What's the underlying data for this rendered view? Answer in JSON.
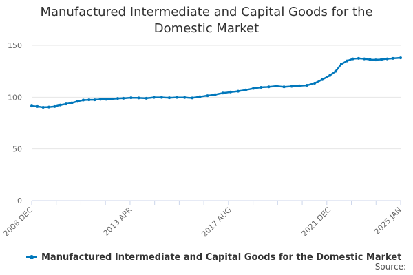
{
  "chart_data": {
    "type": "line",
    "title": "Manufactured Intermediate and Capital Goods for the Domestic Market",
    "xlabel": "",
    "ylabel": "",
    "ylim": [
      0,
      150
    ],
    "yticks": [
      0,
      50,
      100,
      150
    ],
    "x_tick_labels": [
      "2008 DEC",
      "2013 APR",
      "2017 AUG",
      "2021 DEC",
      "2025 JAN"
    ],
    "grid": true,
    "legend_position": "bottom",
    "series": [
      {
        "name": "Manufactured Intermediate and Capital Goods for the Domestic Market",
        "color": "#0077BB",
        "points": [
          [
            "2008-12",
            91.5
          ],
          [
            "2009-03",
            91.0
          ],
          [
            "2009-06",
            90.3
          ],
          [
            "2009-09",
            90.5
          ],
          [
            "2009-12",
            91.0
          ],
          [
            "2010-03",
            92.5
          ],
          [
            "2010-06",
            93.5
          ],
          [
            "2010-09",
            94.5
          ],
          [
            "2010-12",
            96.0
          ],
          [
            "2011-03",
            97.2
          ],
          [
            "2011-06",
            97.5
          ],
          [
            "2011-09",
            97.5
          ],
          [
            "2011-12",
            98.0
          ],
          [
            "2012-03",
            98.0
          ],
          [
            "2012-06",
            98.3
          ],
          [
            "2012-09",
            98.8
          ],
          [
            "2012-12",
            99.0
          ],
          [
            "2013-04",
            99.5
          ],
          [
            "2013-08",
            99.3
          ],
          [
            "2013-12",
            99.0
          ],
          [
            "2014-04",
            99.8
          ],
          [
            "2014-08",
            99.8
          ],
          [
            "2014-12",
            99.5
          ],
          [
            "2015-04",
            99.8
          ],
          [
            "2015-08",
            99.7
          ],
          [
            "2015-12",
            99.3
          ],
          [
            "2016-04",
            100.5
          ],
          [
            "2016-08",
            101.5
          ],
          [
            "2016-12",
            102.5
          ],
          [
            "2017-04",
            104.0
          ],
          [
            "2017-08",
            105.0
          ],
          [
            "2017-12",
            105.8
          ],
          [
            "2018-04",
            107.0
          ],
          [
            "2018-08",
            108.5
          ],
          [
            "2018-12",
            109.5
          ],
          [
            "2019-04",
            110.0
          ],
          [
            "2019-08",
            110.8
          ],
          [
            "2019-12",
            110.0
          ],
          [
            "2020-04",
            110.5
          ],
          [
            "2020-08",
            111.0
          ],
          [
            "2020-12",
            111.5
          ],
          [
            "2021-04",
            113.5
          ],
          [
            "2021-08",
            117.0
          ],
          [
            "2021-12",
            121.0
          ],
          [
            "2022-03",
            125.0
          ],
          [
            "2022-06",
            132.0
          ],
          [
            "2022-09",
            135.0
          ],
          [
            "2022-12",
            137.0
          ],
          [
            "2023-03",
            137.5
          ],
          [
            "2023-06",
            137.0
          ],
          [
            "2023-09",
            136.3
          ],
          [
            "2023-12",
            136.0
          ],
          [
            "2024-03",
            136.5
          ],
          [
            "2024-06",
            137.0
          ],
          [
            "2024-09",
            137.5
          ],
          [
            "2025-01",
            138.0
          ]
        ]
      }
    ],
    "source_label": "Source:"
  }
}
